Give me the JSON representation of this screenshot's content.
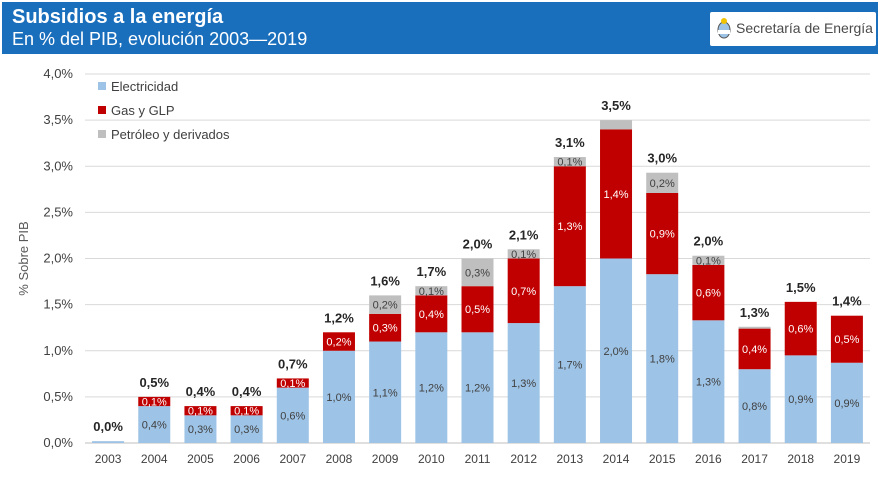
{
  "header": {
    "title": "Subsidios a la energía",
    "subtitle": "En % del PIB, evolución 2003—2019",
    "organization": "Secretaría de Energía"
  },
  "chart_data": {
    "type": "bar",
    "stacked": true,
    "title": "Subsidios a la energía",
    "subtitle": "En % del PIB, evolución 2003—2019",
    "xlabel": "",
    "ylabel": "% Sobre PIB",
    "ylim": [
      0,
      4.0
    ],
    "yticks": [
      "0,0%",
      "0,5%",
      "1,0%",
      "1,5%",
      "2,0%",
      "2,5%",
      "3,0%",
      "3,5%",
      "4,0%"
    ],
    "grid": true,
    "legend_position": "top-left",
    "categories": [
      "2003",
      "2004",
      "2005",
      "2006",
      "2007",
      "2008",
      "2009",
      "2010",
      "2011",
      "2012",
      "2013",
      "2014",
      "2015",
      "2016",
      "2017",
      "2018",
      "2019"
    ],
    "series": [
      {
        "name": "Electricidad",
        "color": "#9dc3e6",
        "values": [
          0.02,
          0.4,
          0.3,
          0.3,
          0.6,
          1.0,
          1.1,
          1.2,
          1.2,
          1.3,
          1.7,
          2.0,
          1.83,
          1.33,
          0.8,
          0.95,
          0.87
        ],
        "labels": [
          "",
          "0,4%",
          "0,3%",
          "0,3%",
          "0,6%",
          "1,0%",
          "1,1%",
          "1,2%",
          "1,2%",
          "1,3%",
          "1,7%",
          "2,0%",
          "1,8%",
          "1,3%",
          "0,8%",
          "0,9%",
          "0,9%"
        ]
      },
      {
        "name": "Gas y GLP",
        "color": "#c00000",
        "values": [
          0,
          0.1,
          0.1,
          0.1,
          0.1,
          0.2,
          0.3,
          0.4,
          0.5,
          0.7,
          1.3,
          1.4,
          0.88,
          0.6,
          0.44,
          0.58,
          0.51
        ],
        "labels": [
          "",
          "0,1%",
          "0,1%",
          "0,1%",
          "0,1%",
          "0,2%",
          "0,3%",
          "0,4%",
          "0,5%",
          "0,7%",
          "1,3%",
          "1,4%",
          "0,9%",
          "0,6%",
          "0,4%",
          "0,6%",
          "0,5%"
        ]
      },
      {
        "name": "Petróleo y derivados",
        "color": "#bfbfbf",
        "values": [
          0,
          0,
          0,
          0,
          0,
          0,
          0.2,
          0.1,
          0.3,
          0.1,
          0.1,
          0.1,
          0.22,
          0.1,
          0.02,
          0,
          0
        ],
        "labels": [
          "",
          "",
          "",
          "",
          "",
          "",
          "0,2%",
          "0,1%",
          "0,3%",
          "0,1%",
          "0,1%",
          "",
          "0,2%",
          "0,1%",
          "",
          "",
          ""
        ]
      }
    ],
    "totals": [
      "0,0%",
      "0,5%",
      "0,4%",
      "0,4%",
      "0,7%",
      "1,2%",
      "1,6%",
      "1,7%",
      "2,0%",
      "2,1%",
      "3,1%",
      "3,5%",
      "3,0%",
      "2,0%",
      "1,3%",
      "1,5%",
      "1,4%"
    ]
  }
}
